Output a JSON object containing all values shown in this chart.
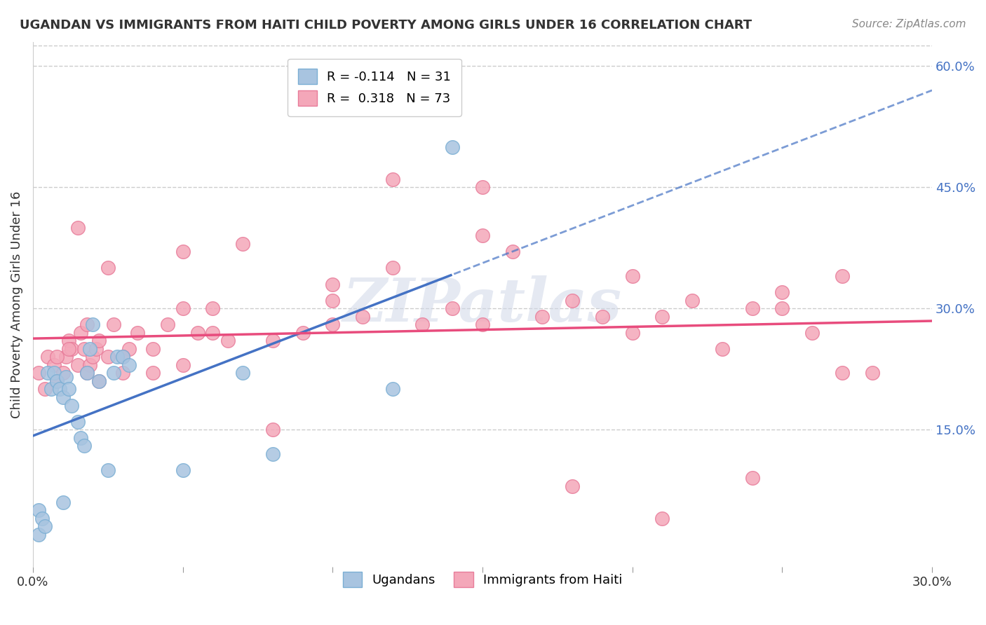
{
  "title": "UGANDAN VS IMMIGRANTS FROM HAITI CHILD POVERTY AMONG GIRLS UNDER 16 CORRELATION CHART",
  "source": "Source: ZipAtlas.com",
  "xlabel": "",
  "ylabel": "Child Poverty Among Girls Under 16",
  "xlim": [
    0.0,
    0.3
  ],
  "ylim": [
    -0.02,
    0.63
  ],
  "xticks": [
    0.0,
    0.05,
    0.1,
    0.15,
    0.2,
    0.25,
    0.3
  ],
  "xtick_labels": [
    "0.0%",
    "",
    "",
    "",
    "",
    "",
    "30.0%"
  ],
  "ytick_positions": [
    0.15,
    0.3,
    0.45,
    0.6
  ],
  "ytick_labels": [
    "15.0%",
    "30.0%",
    "45.0%",
    "60.0%"
  ],
  "ugandan_color": "#a8c4e0",
  "haitian_color": "#f4a7b9",
  "ugandan_edge": "#7bafd4",
  "haitian_edge": "#e87c9a",
  "trend_blue": "#4472c4",
  "trend_pink": "#e84c7d",
  "legend_R_ugandan": "R = -0.114",
  "legend_N_ugandan": "N = 31",
  "legend_R_haitian": "R =  0.318",
  "legend_N_haitian": "N = 73",
  "background_color": "#ffffff",
  "grid_color": "#cccccc",
  "watermark": "ZIPatlas",
  "ugandan_x": [
    0.002,
    0.003,
    0.005,
    0.006,
    0.007,
    0.008,
    0.009,
    0.01,
    0.011,
    0.012,
    0.013,
    0.015,
    0.016,
    0.017,
    0.018,
    0.019,
    0.02,
    0.022,
    0.025,
    0.027,
    0.028,
    0.03,
    0.032,
    0.05,
    0.07,
    0.08,
    0.12,
    0.14,
    0.002,
    0.004,
    0.01
  ],
  "ugandan_y": [
    0.05,
    0.04,
    0.22,
    0.2,
    0.22,
    0.21,
    0.2,
    0.19,
    0.215,
    0.2,
    0.18,
    0.16,
    0.14,
    0.13,
    0.22,
    0.25,
    0.28,
    0.21,
    0.1,
    0.22,
    0.24,
    0.24,
    0.23,
    0.1,
    0.22,
    0.12,
    0.2,
    0.5,
    0.02,
    0.03,
    0.06
  ],
  "haitian_x": [
    0.002,
    0.004,
    0.005,
    0.007,
    0.008,
    0.01,
    0.011,
    0.012,
    0.013,
    0.015,
    0.016,
    0.017,
    0.018,
    0.019,
    0.02,
    0.021,
    0.022,
    0.025,
    0.027,
    0.03,
    0.032,
    0.035,
    0.04,
    0.045,
    0.05,
    0.055,
    0.06,
    0.065,
    0.07,
    0.08,
    0.09,
    0.1,
    0.11,
    0.12,
    0.13,
    0.14,
    0.15,
    0.16,
    0.17,
    0.18,
    0.19,
    0.2,
    0.21,
    0.22,
    0.23,
    0.24,
    0.25,
    0.26,
    0.27,
    0.28,
    0.008,
    0.012,
    0.018,
    0.022,
    0.03,
    0.04,
    0.05,
    0.06,
    0.08,
    0.1,
    0.12,
    0.15,
    0.18,
    0.21,
    0.24,
    0.27,
    0.015,
    0.025,
    0.05,
    0.1,
    0.15,
    0.2,
    0.25
  ],
  "haitian_y": [
    0.22,
    0.2,
    0.24,
    0.23,
    0.21,
    0.22,
    0.24,
    0.26,
    0.25,
    0.23,
    0.27,
    0.25,
    0.28,
    0.23,
    0.24,
    0.25,
    0.26,
    0.24,
    0.28,
    0.22,
    0.25,
    0.27,
    0.25,
    0.28,
    0.23,
    0.27,
    0.3,
    0.26,
    0.38,
    0.26,
    0.27,
    0.31,
    0.29,
    0.35,
    0.28,
    0.3,
    0.39,
    0.37,
    0.29,
    0.31,
    0.29,
    0.27,
    0.29,
    0.31,
    0.25,
    0.3,
    0.3,
    0.27,
    0.34,
    0.22,
    0.24,
    0.25,
    0.22,
    0.21,
    0.24,
    0.22,
    0.37,
    0.27,
    0.15,
    0.33,
    0.46,
    0.45,
    0.08,
    0.04,
    0.09,
    0.22,
    0.4,
    0.35,
    0.3,
    0.28,
    0.28,
    0.34,
    0.32
  ]
}
